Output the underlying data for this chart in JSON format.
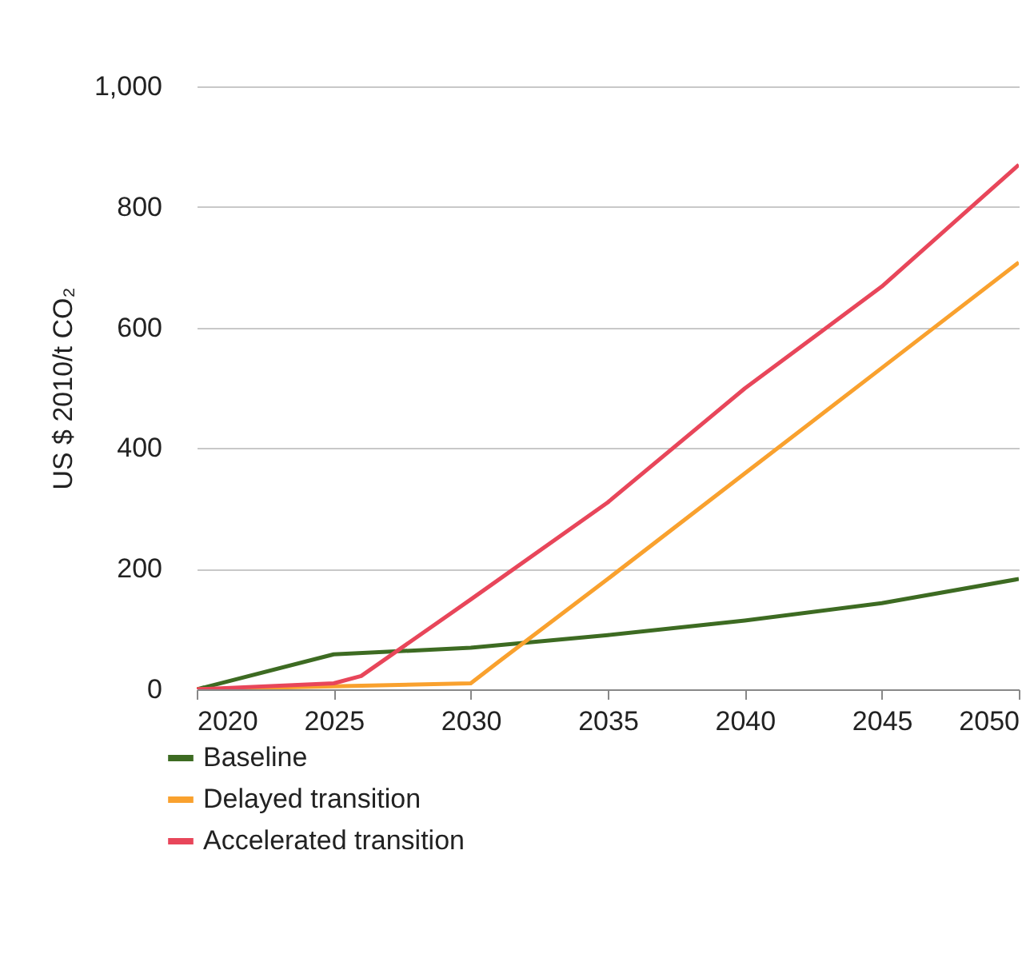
{
  "chart_data": {
    "type": "line",
    "ylabel": "US $ 2010/t CO₂",
    "series": [
      {
        "name": "Baseline",
        "color": "#3d6b22",
        "x": [
          2020,
          2025,
          2030,
          2035,
          2040,
          2045,
          2050
        ],
        "values": [
          0,
          58,
          69,
          90,
          114,
          143,
          183
        ]
      },
      {
        "name": "Delayed transition",
        "color": "#f9a12e",
        "x": [
          2020,
          2025,
          2030,
          2031,
          2035,
          2040,
          2045,
          2050
        ],
        "values": [
          0,
          5,
          10,
          45,
          183,
          358,
          533,
          708
        ]
      },
      {
        "name": "Accelerated transition",
        "color": "#e8465a",
        "x": [
          2020,
          2025,
          2026,
          2030,
          2035,
          2040,
          2045,
          2050
        ],
        "values": [
          0,
          10,
          22,
          149,
          310,
          499,
          668,
          870
        ]
      }
    ],
    "xlim": [
      2020,
      2050
    ],
    "xticks": [
      2020,
      2025,
      2030,
      2035,
      2040,
      2045,
      2050
    ],
    "ylim": [
      0,
      1000
    ],
    "yticks": [
      0,
      200,
      400,
      600,
      800,
      {
        "value": 1000,
        "label": "1,000"
      }
    ],
    "grid": "y",
    "legend": "bottom",
    "marker": "none",
    "line_style": "solid"
  }
}
